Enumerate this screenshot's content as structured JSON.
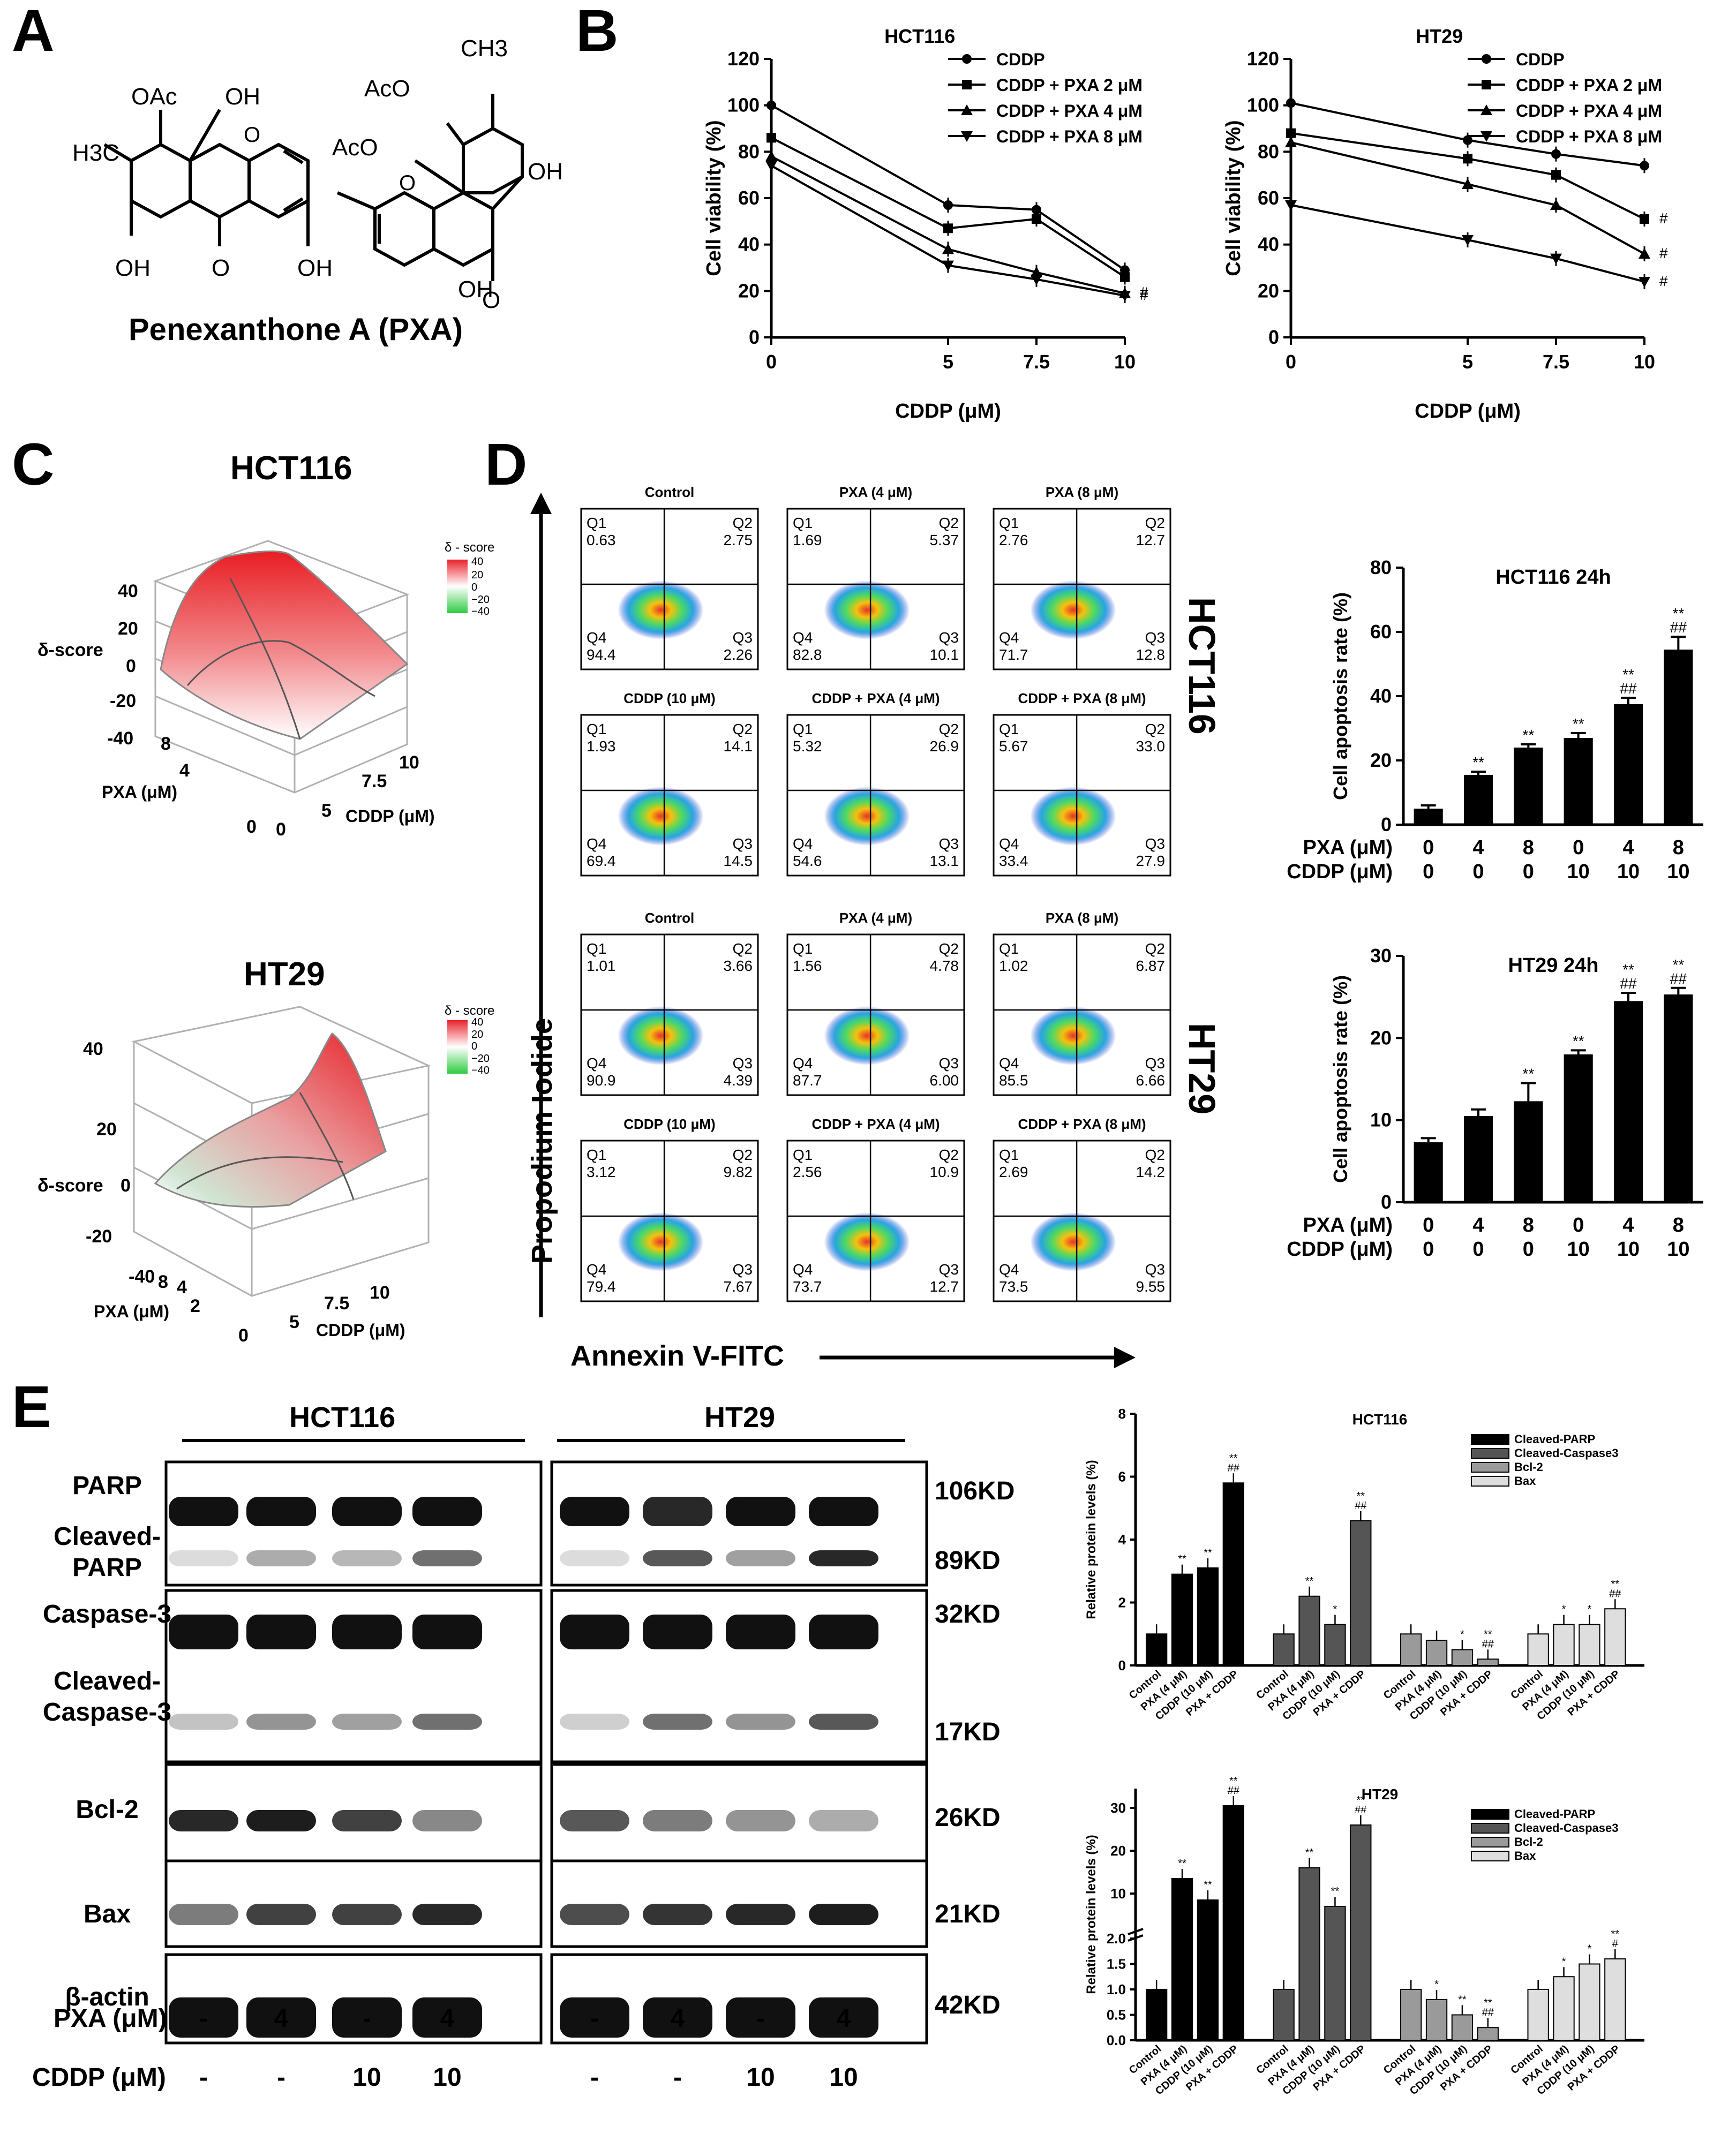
{
  "panel_letters": {
    "a": "A",
    "b": "B",
    "c": "C",
    "d": "D",
    "e": "E"
  },
  "panelA": {
    "compound_name": "Penexanthone A (PXA)",
    "labels": [
      "OAc",
      "OH",
      "CH3",
      "AcO",
      "AcO",
      "H3C",
      "OH",
      "OH",
      "O",
      "OH",
      "O",
      "OH",
      "O",
      "O"
    ]
  },
  "chart_data": [
    {
      "id": "B-HCT116",
      "type": "line",
      "title": "HCT116",
      "xlabel": "CDDP (μM)",
      "ylabel": "Cell viability (%)",
      "x": [
        0,
        5,
        7.5,
        10
      ],
      "x_ticks": [
        "0",
        "5",
        "7.5",
        "10"
      ],
      "ylim": [
        0,
        120
      ],
      "y_ticks": [
        "0",
        "20",
        "40",
        "60",
        "80",
        "100",
        "120"
      ],
      "series": [
        {
          "name": "CDDP",
          "values": [
            100,
            57,
            55,
            29
          ],
          "marker": "circle"
        },
        {
          "name": "CDDP + PXA 2 μM",
          "values": [
            86,
            47,
            51,
            26
          ],
          "marker": "square"
        },
        {
          "name": "CDDP + PXA 4 μM",
          "values": [
            78,
            38,
            28,
            19
          ],
          "marker": "triangle-up"
        },
        {
          "name": "CDDP + PXA 8 μM",
          "values": [
            74,
            31,
            25,
            18
          ],
          "marker": "triangle-down"
        }
      ],
      "end_annotations": [
        "#",
        "#"
      ]
    },
    {
      "id": "B-HT29",
      "type": "line",
      "title": "HT29",
      "xlabel": "CDDP (μM)",
      "ylabel": "Cell viability (%)",
      "x": [
        0,
        5,
        7.5,
        10
      ],
      "x_ticks": [
        "0",
        "5",
        "7.5",
        "10"
      ],
      "ylim": [
        0,
        120
      ],
      "y_ticks": [
        "0",
        "20",
        "40",
        "60",
        "80",
        "100",
        "120"
      ],
      "series": [
        {
          "name": "CDDP",
          "values": [
            101,
            85,
            79,
            74
          ],
          "marker": "circle"
        },
        {
          "name": "CDDP + PXA 2 μM",
          "values": [
            88,
            77,
            70,
            51
          ],
          "marker": "square"
        },
        {
          "name": "CDDP + PXA 4 μM",
          "values": [
            84,
            66,
            57,
            36
          ],
          "marker": "triangle-up"
        },
        {
          "name": "CDDP + PXA 8 μM",
          "values": [
            57,
            42,
            34,
            24
          ],
          "marker": "triangle-down"
        }
      ],
      "end_annotations": [
        "#",
        "#",
        "#"
      ]
    },
    {
      "id": "C-HCT116",
      "type": "surface",
      "title": "HCT116",
      "zlabel": "δ-score",
      "xlabel": "CDDP (μM)",
      "ylabel": "PXA (μM)",
      "z_ticks": [
        "40",
        "20",
        "0",
        "-20",
        "-40"
      ],
      "x_ticks": [
        "0",
        "5",
        "7.5",
        "10"
      ],
      "y_ticks": [
        "0",
        "4",
        "8"
      ],
      "colorbar_title": "δ - score",
      "colorbar_ticks": [
        "40",
        "20",
        "0",
        "−20",
        "−40"
      ]
    },
    {
      "id": "C-HT29",
      "type": "surface",
      "title": "HT29",
      "zlabel": "δ-score",
      "xlabel": "CDDP (μM)",
      "ylabel": "PXA (μM)",
      "z_ticks": [
        "40",
        "20",
        "0",
        "-20",
        "-40"
      ],
      "x_ticks": [
        "5",
        "7.5",
        "10"
      ],
      "y_ticks": [
        "0",
        "2",
        "4",
        "8"
      ],
      "colorbar_title": "δ - score",
      "colorbar_ticks": [
        "40",
        "20",
        "0",
        "−20",
        "−40"
      ]
    },
    {
      "id": "D-HCT116-bar",
      "type": "bar",
      "title": "HCT116 24h",
      "ylabel": "Cell apoptosis rate (%)",
      "ylim": [
        0,
        80
      ],
      "y_ticks": [
        "0",
        "20",
        "40",
        "60",
        "80"
      ],
      "values": [
        5,
        15.5,
        24,
        27,
        37.5,
        54.5
      ],
      "errors": [
        1,
        1,
        1,
        1.5,
        2,
        4
      ],
      "annotations": [
        "",
        "**",
        "**",
        "**",
        "**\n##",
        "**\n##"
      ],
      "row_labels": [
        "PXA (μM)",
        "CDDP (μM)"
      ],
      "pxa": [
        "0",
        "4",
        "8",
        "0",
        "4",
        "8"
      ],
      "cddp": [
        "0",
        "0",
        "0",
        "10",
        "10",
        "10"
      ]
    },
    {
      "id": "D-HT29-bar",
      "type": "bar",
      "title": "HT29 24h",
      "ylabel": "Cell apoptosis rate (%)",
      "ylim": [
        0,
        30
      ],
      "y_ticks": [
        "0",
        "10",
        "20",
        "30"
      ],
      "values": [
        7.3,
        10.5,
        12.3,
        18,
        24.5,
        25.3
      ],
      "errors": [
        0.5,
        0.8,
        2.2,
        0.5,
        1,
        0.8
      ],
      "annotations": [
        "",
        "",
        "**",
        "**",
        "**\n##",
        "**\n##"
      ],
      "row_labels": [
        "PXA (μM)",
        "CDDP (μM)"
      ],
      "pxa": [
        "0",
        "4",
        "8",
        "0",
        "4",
        "8"
      ],
      "cddp": [
        "0",
        "0",
        "0",
        "10",
        "10",
        "10"
      ]
    },
    {
      "id": "E-HCT116-bar",
      "type": "bar",
      "title": "HCT116",
      "ylabel": "Relative protein levels (%)",
      "ylim": [
        0,
        8
      ],
      "y_ticks": [
        "0",
        "2",
        "4",
        "6",
        "8"
      ],
      "groups": [
        "Cleaved-PARP",
        "Cleaved-Caspase3",
        "Bcl-2",
        "Bax"
      ],
      "categories": [
        "Control",
        "PXA (4 μM)",
        "CDDP (10 μM)",
        "PXA + CDDP"
      ],
      "values": [
        [
          1.0,
          2.9,
          3.1,
          5.8
        ],
        [
          1.0,
          2.2,
          1.3,
          4.6
        ],
        [
          1.0,
          0.8,
          0.5,
          0.2
        ],
        [
          1.0,
          1.3,
          1.3,
          1.8
        ]
      ],
      "annotations": [
        [
          "",
          "**",
          "**",
          "**\n##"
        ],
        [
          "",
          "**",
          "*",
          "**\n##"
        ],
        [
          "",
          "",
          "*",
          "**\n##"
        ],
        [
          "",
          "*",
          "*",
          "**\n##"
        ]
      ]
    },
    {
      "id": "E-HT29-bar",
      "type": "bar",
      "title": "HT29",
      "ylabel": "Relative protein levels (%)",
      "y_ticks": [
        "0.0",
        "0.5",
        "1.0",
        "1.5",
        "2.0",
        "10",
        "20",
        "30"
      ],
      "groups": [
        "Cleaved-PARP",
        "Cleaved-Caspase3",
        "Bcl-2",
        "Bax"
      ],
      "categories": [
        "Control",
        "PXA (4 μM)",
        "CDDP (10 μM)",
        "PXA + CDDP"
      ],
      "values": [
        [
          1.0,
          13.5,
          8.5,
          30.5
        ],
        [
          1.0,
          16.0,
          7.0,
          26.0
        ],
        [
          1.0,
          0.8,
          0.5,
          0.25
        ],
        [
          1.0,
          1.25,
          1.5,
          1.6
        ]
      ],
      "annotations": [
        [
          "",
          "**",
          "**",
          "**\n##"
        ],
        [
          "",
          "**",
          "**",
          "**\n##"
        ],
        [
          "",
          "*",
          "**",
          "**\n##"
        ],
        [
          "",
          "*",
          "*",
          "**\n#"
        ]
      ]
    }
  ],
  "flow": {
    "y_axis_label": "Propodium Iodide",
    "x_axis_label": "Annexin V-FITC",
    "side_labels": [
      "HCT116",
      "HT29"
    ],
    "plots": [
      {
        "title": "Control",
        "q1": "0.63",
        "q2": "2.75",
        "q3": "2.26",
        "q4": "94.4"
      },
      {
        "title": "PXA (4 μM)",
        "q1": "1.69",
        "q2": "5.37",
        "q3": "10.1",
        "q4": "82.8"
      },
      {
        "title": "PXA (8 μM)",
        "q1": "2.76",
        "q2": "12.7",
        "q3": "12.8",
        "q4": "71.7"
      },
      {
        "title": "CDDP (10 μM)",
        "q1": "1.93",
        "q2": "14.1",
        "q3": "14.5",
        "q4": "69.4"
      },
      {
        "title": "CDDP + PXA (4 μM)",
        "q1": "5.32",
        "q2": "26.9",
        "q3": "13.1",
        "q4": "54.6"
      },
      {
        "title": "CDDP + PXA (8 μM)",
        "q1": "5.67",
        "q2": "33.0",
        "q3": "27.9",
        "q4": "33.4"
      },
      {
        "title": "Control",
        "q1": "1.01",
        "q2": "3.66",
        "q3": "4.39",
        "q4": "90.9"
      },
      {
        "title": "PXA (4 μM)",
        "q1": "1.56",
        "q2": "4.78",
        "q3": "6.00",
        "q4": "87.7"
      },
      {
        "title": "PXA (8 μM)",
        "q1": "1.02",
        "q2": "6.87",
        "q3": "6.66",
        "q4": "85.5"
      },
      {
        "title": "CDDP (10 μM)",
        "q1": "3.12",
        "q2": "9.82",
        "q3": "7.67",
        "q4": "79.4"
      },
      {
        "title": "CDDP + PXA (4 μM)",
        "q1": "2.56",
        "q2": "10.9",
        "q3": "12.7",
        "q4": "73.7"
      },
      {
        "title": "CDDP + PXA (8 μM)",
        "q1": "2.69",
        "q2": "14.2",
        "q3": "9.55",
        "q4": "73.5"
      }
    ],
    "quad_labels": [
      "Q1",
      "Q2",
      "Q3",
      "Q4"
    ]
  },
  "blots": {
    "cell_lines": [
      "HCT116",
      "HT29"
    ],
    "rows": [
      {
        "label": "PARP",
        "kd": "106KD"
      },
      {
        "label": "Cleaved-\nPARP",
        "kd": "89KD"
      },
      {
        "label": "Caspase-3",
        "kd": "32KD"
      },
      {
        "label": "Cleaved-\nCaspase-3",
        "kd": "17KD"
      },
      {
        "label": "Bcl-2",
        "kd": "26KD"
      },
      {
        "label": "Bax",
        "kd": "21KD"
      },
      {
        "label": "β-actin",
        "kd": "42KD"
      }
    ],
    "treat_labels": [
      "PXA (μM)",
      "CDDP (μM)"
    ],
    "pxa": [
      "-",
      "4",
      "-",
      "4",
      "-",
      "4",
      "-",
      "4"
    ],
    "cddp": [
      "-",
      "-",
      "10",
      "10",
      "-",
      "-",
      "10",
      "10"
    ]
  },
  "colors": {
    "black": "#000000",
    "dark_gray": "#555555",
    "mid_gray": "#9a9a9a",
    "light_gray": "#dedede",
    "red": "#e8232c",
    "green": "#2ecc40"
  }
}
